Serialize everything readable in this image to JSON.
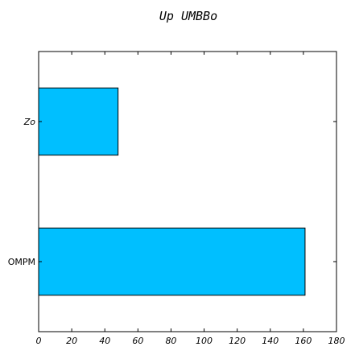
{
  "chart_data": {
    "type": "bar",
    "orientation": "horizontal",
    "title": "Up UMBBo",
    "categories": [
      "Zo",
      "OMPM"
    ],
    "category_label_styles": [
      "italic",
      "normal"
    ],
    "values": [
      48,
      161
    ],
    "xlim": [
      0,
      180
    ],
    "x_ticks": [
      "0",
      "20",
      "40",
      "60",
      "80",
      "100",
      "120",
      "140",
      "160",
      "180"
    ],
    "x_tick_style": "italic",
    "xlabel": "",
    "ylabel": "",
    "grid": false,
    "bar_color": "#00bfff",
    "edge_color": "#000000"
  }
}
